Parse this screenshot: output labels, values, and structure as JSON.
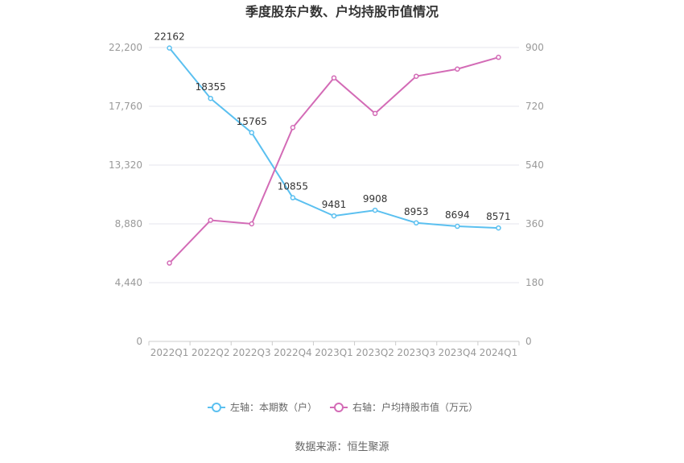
{
  "chart_data": {
    "type": "line",
    "title": "季度股东户数、户均持股市值情况",
    "categories": [
      "2022Q1",
      "2022Q2",
      "2022Q3",
      "2022Q4",
      "2023Q1",
      "2023Q2",
      "2023Q3",
      "2023Q4",
      "2024Q1"
    ],
    "left_axis": {
      "ylim": [
        0,
        22200
      ],
      "ticks": [
        "0",
        "4,440",
        "8,880",
        "13,320",
        "17,760",
        "22,200"
      ],
      "tick_values": [
        0,
        4440,
        8880,
        13320,
        17760,
        22200
      ]
    },
    "right_axis": {
      "ylim": [
        0,
        900
      ],
      "ticks": [
        "0",
        "180",
        "360",
        "540",
        "720",
        "900"
      ],
      "tick_values": [
        0,
        180,
        360,
        540,
        720,
        900
      ]
    },
    "series": [
      {
        "name": "左轴：本期数（户）",
        "axis": "left",
        "color": "#5bc0f0",
        "values": [
          22162,
          18355,
          15765,
          10855,
          9481,
          9908,
          8953,
          8694,
          8571
        ],
        "labels": [
          "22162",
          "18355",
          "15765",
          "10855",
          "9481",
          "9908",
          "8953",
          "8694",
          "8571"
        ]
      },
      {
        "name": "右轴：户均持股市值（万元）",
        "axis": "right",
        "color": "#d36bb6",
        "values": [
          240,
          371,
          360,
          655,
          807,
          698,
          812,
          834,
          870
        ]
      }
    ],
    "grid": true,
    "legend": "bottom-center"
  },
  "footer": {
    "source": "数据来源：恒生聚源"
  }
}
